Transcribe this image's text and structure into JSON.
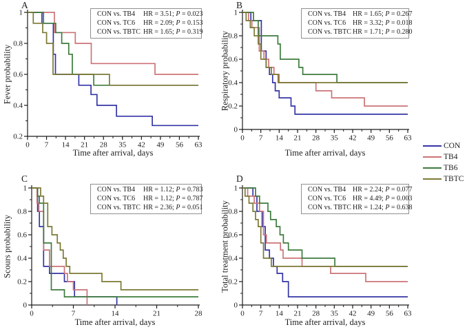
{
  "colors": {
    "con": "#3434a6",
    "tb4": "#cc7377",
    "tb6": "#3d7b3d",
    "tbtc": "#7b7935",
    "axis": "#1a1a1a",
    "text": "#1c1c1c",
    "annotation_border": "#8f8f8f"
  },
  "legend": {
    "items": [
      {
        "label": "CON",
        "color_key": "con"
      },
      {
        "label": "TB4",
        "color_key": "tb4"
      },
      {
        "label": "TB6",
        "color_key": "tb6"
      },
      {
        "label": "TBTC",
        "color_key": "tbtc"
      }
    ]
  },
  "chart_data": [
    {
      "id": "A",
      "panel_letter": "A",
      "type": "line",
      "subtype": "kaplan-meier-step",
      "xlabel": "Time after arrival, days",
      "ylabel": "Fever probability",
      "xlim": [
        0,
        63
      ],
      "ylim": [
        0.2,
        1
      ],
      "xticks": [
        0,
        7,
        14,
        21,
        28,
        35,
        42,
        49,
        56,
        63
      ],
      "xtick_labels": [
        "0",
        "7",
        "14",
        "21",
        "28",
        "35",
        "42",
        "49",
        "56",
        "63"
      ],
      "yticks": [
        0.2,
        0.4,
        0.6,
        0.8,
        1
      ],
      "ytick_labels": [
        "0.2",
        "0.4",
        "0.6",
        "0.8",
        "1"
      ],
      "grid": false,
      "annotations": [
        {
          "pair": "CON vs. TB4",
          "hr": 3.51,
          "p": 0.023,
          "stats": "HR = 3.51; P = 0.023"
        },
        {
          "pair": "CON vs. TC6",
          "hr": 2.09,
          "p": 0.153,
          "stats": "HR = 2.09; P = 0.153"
        },
        {
          "pair": "CON vs. TBTC",
          "hr": 1.65,
          "p": 0.319,
          "stats": "HR = 1.65; P = 0.319"
        }
      ],
      "series": [
        {
          "name": "CON",
          "color_key": "con",
          "steps": [
            [
              0,
              1
            ],
            [
              5.3,
              0.93
            ],
            [
              9.5,
              0.73
            ],
            [
              10.3,
              0.6
            ],
            [
              18.9,
              0.53
            ],
            [
              23.4,
              0.47
            ],
            [
              25.6,
              0.4
            ],
            [
              32.8,
              0.33
            ],
            [
              46,
              0.27
            ]
          ]
        },
        {
          "name": "TB4",
          "color_key": "tb4",
          "steps": [
            [
              0,
              1
            ],
            [
              9.9,
              0.87
            ],
            [
              17.6,
              0.8
            ],
            [
              23.5,
              0.67
            ],
            [
              47,
              0.6
            ]
          ]
        },
        {
          "name": "TB6",
          "color_key": "tb6",
          "steps": [
            [
              0,
              1
            ],
            [
              5.9,
              0.93
            ],
            [
              10.4,
              0.87
            ],
            [
              12.6,
              0.8
            ],
            [
              15.2,
              0.73
            ],
            [
              16.5,
              0.6
            ],
            [
              24.4,
              0.53
            ]
          ]
        },
        {
          "name": "TBTC",
          "color_key": "tbtc",
          "steps": [
            [
              0,
              1
            ],
            [
              2.1,
              0.93
            ],
            [
              5.6,
              0.87
            ],
            [
              7,
              0.8
            ],
            [
              9.4,
              0.6
            ],
            [
              30.2,
              0.53
            ]
          ]
        }
      ]
    },
    {
      "id": "B",
      "panel_letter": "B",
      "type": "line",
      "subtype": "kaplan-meier-step",
      "xlabel": "Time after arrival, days",
      "ylabel": "Respiratory probability",
      "xlim": [
        0,
        63
      ],
      "ylim": [
        0,
        1
      ],
      "xticks": [
        0,
        7,
        14,
        21,
        28,
        35,
        42,
        49,
        56,
        63
      ],
      "xtick_labels": [
        "0",
        "7",
        "14",
        "21",
        "28",
        "35",
        "42",
        "49",
        "56",
        "63"
      ],
      "yticks": [
        0,
        0.2,
        0.4,
        0.6,
        0.8,
        1
      ],
      "ytick_labels": [
        "0",
        "0.2",
        "0.4",
        "0.6",
        "0.8",
        "1"
      ],
      "grid": false,
      "annotations": [
        {
          "pair": "CON vs. TB4",
          "hr": 1.65,
          "p": 0.267,
          "stats": "HR = 1.65; P = 0.267"
        },
        {
          "pair": "CON vs. TC6",
          "hr": 3.32,
          "p": 0.018,
          "stats": "HR = 3.32; P = 0.018"
        },
        {
          "pair": "CON vs. TBTC",
          "hr": 1.71,
          "p": 0.28,
          "stats": "HR = 1.71; P = 0.280"
        }
      ],
      "series": [
        {
          "name": "CON",
          "color_key": "con",
          "steps": [
            [
              0,
              1
            ],
            [
              3.2,
              0.93
            ],
            [
              7.2,
              0.67
            ],
            [
              9,
              0.53
            ],
            [
              10.3,
              0.47
            ],
            [
              11.5,
              0.4
            ],
            [
              12.5,
              0.33
            ],
            [
              14,
              0.27
            ],
            [
              18.5,
              0.2
            ],
            [
              20,
              0.13
            ]
          ]
        },
        {
          "name": "TB4",
          "color_key": "tb4",
          "steps": [
            [
              0,
              1
            ],
            [
              2.3,
              0.93
            ],
            [
              3.6,
              0.87
            ],
            [
              6.4,
              0.67
            ],
            [
              8.2,
              0.6
            ],
            [
              10,
              0.53
            ],
            [
              12,
              0.47
            ],
            [
              14,
              0.4
            ],
            [
              28,
              0.33
            ],
            [
              34,
              0.27
            ],
            [
              46.5,
              0.2
            ]
          ]
        },
        {
          "name": "TB6",
          "color_key": "tb6",
          "steps": [
            [
              0,
              1
            ],
            [
              4.2,
              0.93
            ],
            [
              6,
              0.8
            ],
            [
              13.5,
              0.73
            ],
            [
              14.4,
              0.6
            ],
            [
              21.5,
              0.53
            ],
            [
              23,
              0.47
            ],
            [
              36,
              0.4
            ]
          ]
        },
        {
          "name": "TBTC",
          "color_key": "tbtc",
          "steps": [
            [
              0,
              1
            ],
            [
              1.4,
              0.93
            ],
            [
              3,
              0.87
            ],
            [
              4.5,
              0.8
            ],
            [
              6,
              0.73
            ],
            [
              7,
              0.6
            ],
            [
              9,
              0.53
            ],
            [
              11,
              0.47
            ],
            [
              13.6,
              0.4
            ]
          ]
        }
      ]
    },
    {
      "id": "C",
      "panel_letter": "C",
      "type": "line",
      "subtype": "kaplan-meier-step",
      "xlabel": "Time after arrival, days",
      "ylabel": "Scours probability",
      "xlim": [
        0,
        28
      ],
      "ylim": [
        0,
        1
      ],
      "xticks": [
        0,
        7,
        14,
        21,
        28
      ],
      "xtick_labels": [
        "0",
        "7",
        "14",
        "21",
        "28"
      ],
      "yticks": [
        0,
        0.2,
        0.4,
        0.6,
        0.8,
        1
      ],
      "ytick_labels": [
        "0",
        "0.2",
        "0.4",
        "0.6",
        "0.8",
        "1"
      ],
      "grid": false,
      "annotations": [
        {
          "pair": "CON vs. TB4",
          "hr": 1.12,
          "p": 0.783,
          "stats": "HR = 1.12; P = 0.783"
        },
        {
          "pair": "CON vs. TC6",
          "hr": 1.12,
          "p": 0.787,
          "stats": "HR = 1.12; P = 0.787"
        },
        {
          "pair": "CON vs. TBTC",
          "hr": 2.36,
          "p": 0.051,
          "stats": "HR = 2.36; P = 0.051"
        }
      ],
      "series": [
        {
          "name": "CON",
          "color_key": "con",
          "steps": [
            [
              0,
              1
            ],
            [
              1,
              0.8
            ],
            [
              1.3,
              0.67
            ],
            [
              2,
              0.33
            ],
            [
              3,
              0.27
            ],
            [
              5.5,
              0.2
            ],
            [
              7.2,
              0.07
            ],
            [
              14.3,
              0
            ]
          ]
        },
        {
          "name": "TB4",
          "color_key": "tb4",
          "steps": [
            [
              0,
              1
            ],
            [
              0.9,
              0.87
            ],
            [
              1.2,
              0.8
            ],
            [
              2,
              0.47
            ],
            [
              3,
              0.33
            ],
            [
              5.5,
              0.27
            ],
            [
              6,
              0.2
            ],
            [
              7,
              0.13
            ],
            [
              9.3,
              0
            ]
          ]
        },
        {
          "name": "TB6",
          "color_key": "tb6",
          "steps": [
            [
              0,
              1
            ],
            [
              1,
              0.93
            ],
            [
              1.3,
              0.87
            ],
            [
              2,
              0.53
            ],
            [
              3.3,
              0.13
            ],
            [
              5.5,
              0.07
            ]
          ]
        },
        {
          "name": "TBTC",
          "color_key": "tbtc",
          "steps": [
            [
              0,
              1
            ],
            [
              1.5,
              0.93
            ],
            [
              2,
              0.87
            ],
            [
              2.7,
              0.67
            ],
            [
              3.4,
              0.6
            ],
            [
              4.3,
              0.53
            ],
            [
              4.8,
              0.47
            ],
            [
              5.3,
              0.4
            ],
            [
              5.8,
              0.33
            ],
            [
              6.4,
              0.27
            ],
            [
              11.8,
              0.2
            ],
            [
              15,
              0.13
            ]
          ]
        }
      ]
    },
    {
      "id": "D",
      "panel_letter": "D",
      "type": "line",
      "subtype": "kaplan-meier-step",
      "xlabel": "Time after arrival, days",
      "ylabel": "Total treatment probability",
      "xlim": [
        0,
        63
      ],
      "ylim": [
        0,
        1
      ],
      "xticks": [
        0,
        7,
        14,
        21,
        28,
        35,
        42,
        49,
        56,
        63
      ],
      "xtick_labels": [
        "0",
        "7",
        "14",
        "21",
        "28",
        "35",
        "42",
        "49",
        "56",
        "63"
      ],
      "yticks": [
        0,
        0.2,
        0.4,
        0.6,
        0.8,
        1
      ],
      "ytick_labels": [
        "0",
        "0.2",
        "0.4",
        "0.6",
        "0.8",
        "1"
      ],
      "grid": false,
      "annotations": [
        {
          "pair": "CON vs. TB4",
          "hr": 2.24,
          "p": 0.077,
          "stats": "HR = 2.24; P = 0.077"
        },
        {
          "pair": "CON vs. TC6",
          "hr": 4.49,
          "p": 0.003,
          "stats": "HR = 4.49; P = 0.003"
        },
        {
          "pair": "CON vs. TBTC",
          "hr": 1.24,
          "p": 0.638,
          "stats": "HR = 1.24; P = 0.638"
        }
      ],
      "series": [
        {
          "name": "CON",
          "color_key": "con",
          "steps": [
            [
              0,
              1
            ],
            [
              4,
              0.93
            ],
            [
              5.5,
              0.8
            ],
            [
              7.5,
              0.67
            ],
            [
              8.7,
              0.47
            ],
            [
              10.3,
              0.4
            ],
            [
              11.8,
              0.33
            ],
            [
              13.2,
              0.27
            ],
            [
              15.3,
              0.2
            ],
            [
              17.5,
              0.07
            ]
          ]
        },
        {
          "name": "TB4",
          "color_key": "tb4",
          "steps": [
            [
              0,
              1
            ],
            [
              2,
              0.93
            ],
            [
              4.5,
              0.87
            ],
            [
              6.5,
              0.8
            ],
            [
              8,
              0.6
            ],
            [
              9.1,
              0.53
            ],
            [
              14.5,
              0.47
            ],
            [
              15.5,
              0.4
            ],
            [
              22.7,
              0.33
            ],
            [
              33.6,
              0.27
            ],
            [
              47,
              0.2
            ]
          ]
        },
        {
          "name": "TB6",
          "color_key": "tb6",
          "steps": [
            [
              0,
              1
            ],
            [
              5,
              0.93
            ],
            [
              6.5,
              0.87
            ],
            [
              9.7,
              0.8
            ],
            [
              10.7,
              0.73
            ],
            [
              12.9,
              0.67
            ],
            [
              14.3,
              0.6
            ],
            [
              15.6,
              0.53
            ],
            [
              17.5,
              0.47
            ],
            [
              22.7,
              0.4
            ],
            [
              35.2,
              0.33
            ]
          ]
        },
        {
          "name": "TBTC",
          "color_key": "tbtc",
          "steps": [
            [
              0,
              1
            ],
            [
              1,
              0.93
            ],
            [
              2.5,
              0.87
            ],
            [
              4,
              0.8
            ],
            [
              5,
              0.73
            ],
            [
              6,
              0.67
            ],
            [
              7,
              0.53
            ],
            [
              8,
              0.4
            ],
            [
              11,
              0.33
            ]
          ]
        }
      ]
    }
  ]
}
